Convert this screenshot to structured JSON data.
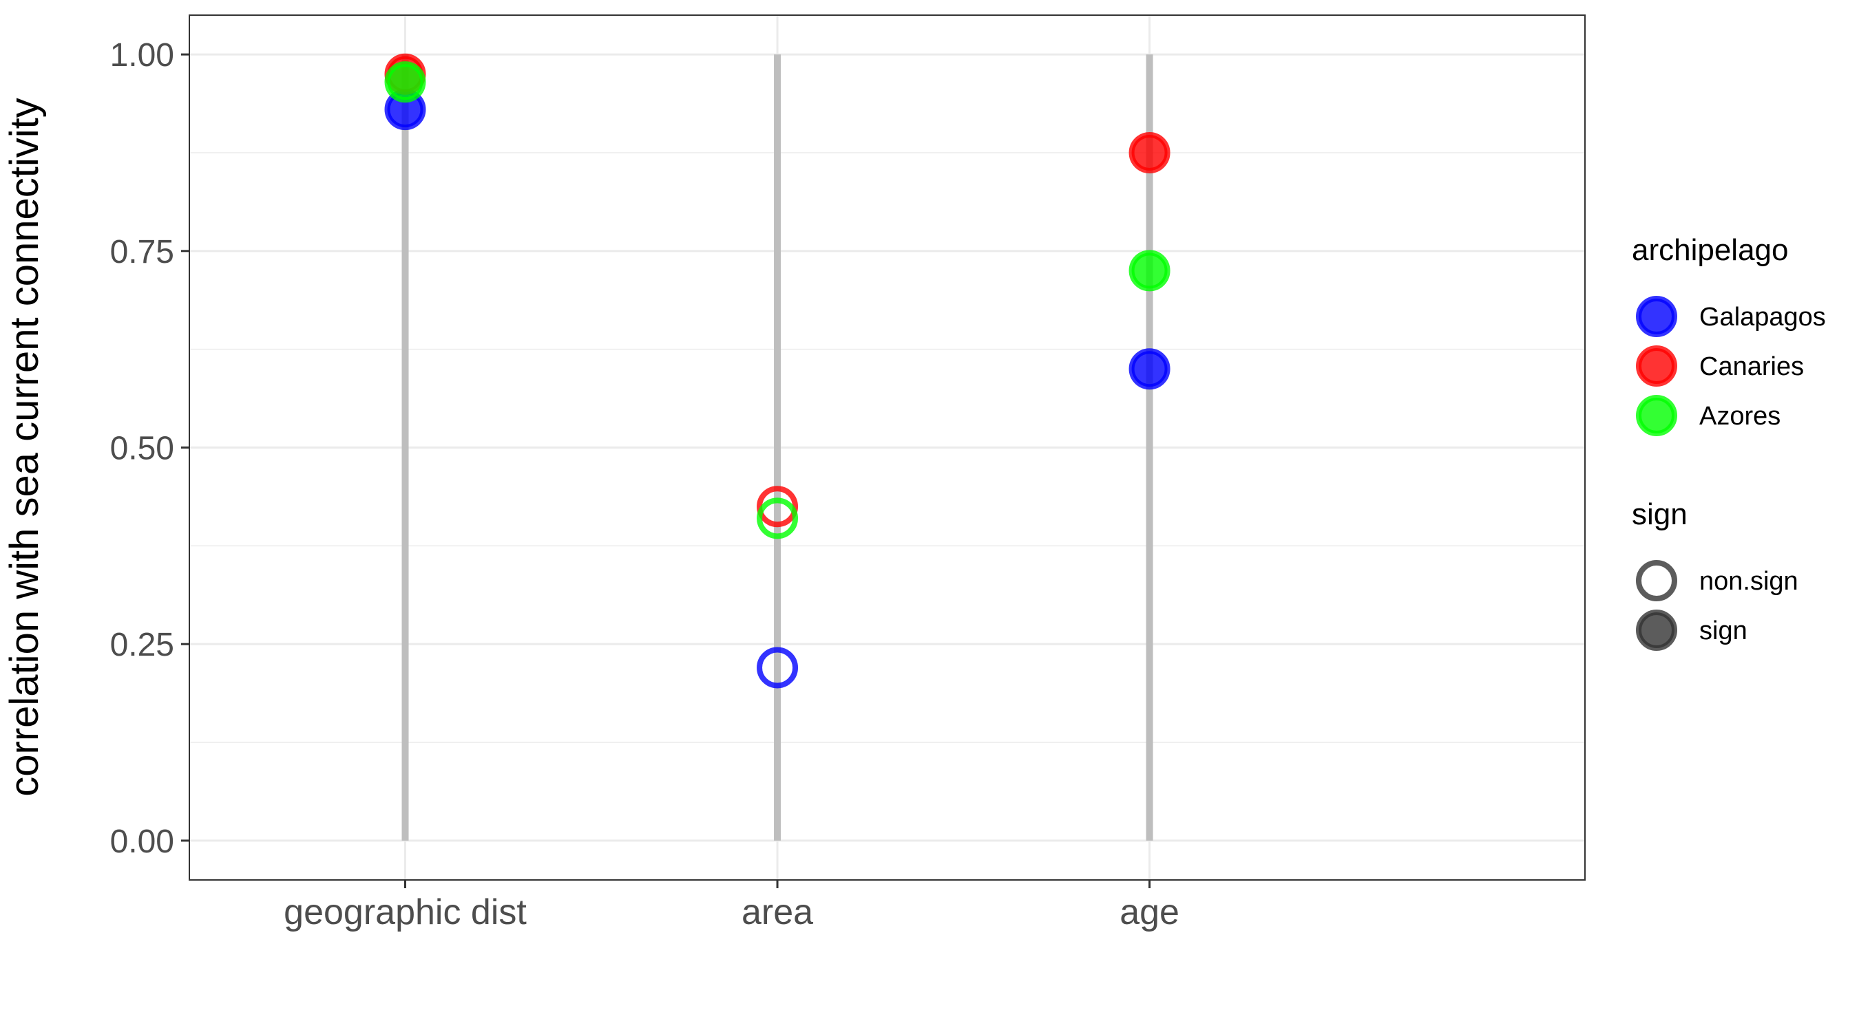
{
  "chart_data": {
    "type": "scatter",
    "title": "",
    "xlabel": "",
    "ylabel": "correlation with sea current connectivity",
    "categories": [
      "geographic dist",
      "area",
      "age"
    ],
    "ylim": [
      -0.05,
      1.05
    ],
    "yticks": [
      0.0,
      0.25,
      0.5,
      0.75,
      1.0
    ],
    "ytick_labels": [
      "0.00",
      "0.25",
      "0.50",
      "0.75",
      "1.00"
    ],
    "grid": true,
    "series": [
      {
        "name": "Galapagos",
        "color": "#0000ff",
        "values": [
          0.93,
          0.22,
          0.6
        ],
        "sign": [
          "sign",
          "non.sign",
          "sign"
        ]
      },
      {
        "name": "Canaries",
        "color": "#ff0000",
        "values": [
          0.975,
          0.425,
          0.875
        ],
        "sign": [
          "sign",
          "non.sign",
          "sign"
        ]
      },
      {
        "name": "Azores",
        "color": "#00ff00",
        "values": [
          0.965,
          0.41,
          0.725
        ],
        "sign": [
          "sign",
          "non.sign",
          "sign"
        ]
      }
    ],
    "segments": {
      "color": "#bebebe",
      "from": 0,
      "to": 1
    },
    "legend": {
      "placement": "right",
      "groups": [
        {
          "title": "archipelago",
          "items": [
            {
              "label": "Galapagos",
              "color": "#0000ff",
              "filled": true
            },
            {
              "label": "Canaries",
              "color": "#ff0000",
              "filled": true
            },
            {
              "label": "Azores",
              "color": "#00ff00",
              "filled": true
            }
          ]
        },
        {
          "title": "sign",
          "items": [
            {
              "label": "non.sign",
              "color": "#333333",
              "filled": false
            },
            {
              "label": "sign",
              "color": "#333333",
              "filled": true
            }
          ]
        }
      ]
    }
  }
}
